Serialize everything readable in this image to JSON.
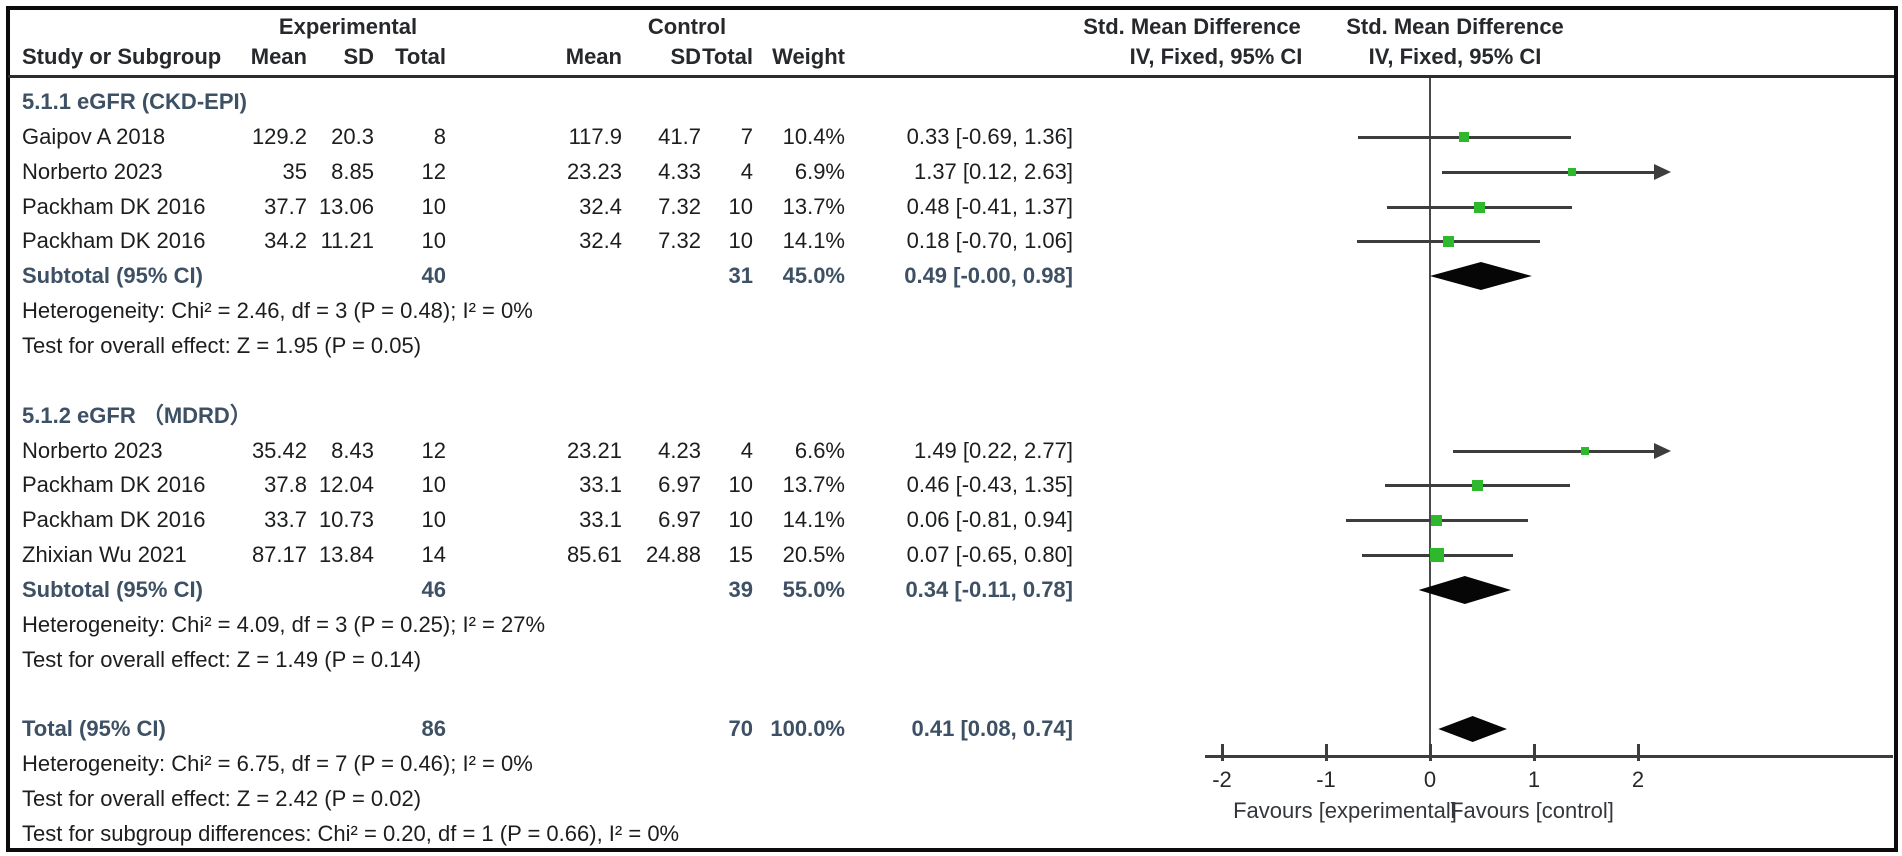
{
  "chart_data": {
    "type": "scatter",
    "subtype": "forest-plot-meta-analysis",
    "header": {
      "study": "Study or Subgroup",
      "experimental": "Experimental",
      "control": "Control",
      "mean": "Mean",
      "sd": "SD",
      "total": "Total",
      "weight": "Weight",
      "smd_title": "Std. Mean Difference",
      "method": "IV, Fixed, 95% CI"
    },
    "subgroups": [
      {
        "title": "5.1.1 eGFR (CKD-EPI)",
        "studies": [
          {
            "name": "Gaipov A 2018",
            "exp_mean": "129.2",
            "exp_sd": "20.3",
            "exp_total": "8",
            "ctl_mean": "117.9",
            "ctl_sd": "41.7",
            "ctl_total": "7",
            "weight": "10.4%",
            "weight_val": 10.4,
            "ci_text": "0.33 [-0.69, 1.36]",
            "est": 0.33,
            "lo": -0.69,
            "hi": 1.36
          },
          {
            "name": "Norberto 2023",
            "exp_mean": "35",
            "exp_sd": "8.85",
            "exp_total": "12",
            "ctl_mean": "23.23",
            "ctl_sd": "4.33",
            "ctl_total": "4",
            "weight": "6.9%",
            "weight_val": 6.9,
            "ci_text": "1.37 [0.12, 2.63]",
            "est": 1.37,
            "lo": 0.12,
            "hi": 2.63
          },
          {
            "name": "Packham DK 2016",
            "exp_mean": "37.7",
            "exp_sd": "13.06",
            "exp_total": "10",
            "ctl_mean": "32.4",
            "ctl_sd": "7.32",
            "ctl_total": "10",
            "weight": "13.7%",
            "weight_val": 13.7,
            "ci_text": "0.48 [-0.41, 1.37]",
            "est": 0.48,
            "lo": -0.41,
            "hi": 1.37
          },
          {
            "name": "Packham DK 2016",
            "exp_mean": "34.2",
            "exp_sd": "11.21",
            "exp_total": "10",
            "ctl_mean": "32.4",
            "ctl_sd": "7.32",
            "ctl_total": "10",
            "weight": "14.1%",
            "weight_val": 14.1,
            "ci_text": "0.18 [-0.70, 1.06]",
            "est": 0.18,
            "lo": -0.7,
            "hi": 1.06
          }
        ],
        "subtotal": {
          "label": "Subtotal (95% CI)",
          "exp_total": "40",
          "ctl_total": "31",
          "weight": "45.0%",
          "ci_text": "0.49 [-0.00, 0.98]",
          "est": 0.49,
          "lo": -0.001,
          "hi": 0.98
        },
        "heterogeneity": "Heterogeneity: Chi² = 2.46, df = 3 (P = 0.48); I² = 0%",
        "overall_effect": "Test for overall effect: Z = 1.95 (P = 0.05)"
      },
      {
        "title": "5.1.2 eGFR （MDRD）",
        "studies": [
          {
            "name": "Norberto 2023",
            "exp_mean": "35.42",
            "exp_sd": "8.43",
            "exp_total": "12",
            "ctl_mean": "23.21",
            "ctl_sd": "4.23",
            "ctl_total": "4",
            "weight": "6.6%",
            "weight_val": 6.6,
            "ci_text": "1.49 [0.22, 2.77]",
            "est": 1.49,
            "lo": 0.22,
            "hi": 2.77
          },
          {
            "name": "Packham DK 2016",
            "exp_mean": "37.8",
            "exp_sd": "12.04",
            "exp_total": "10",
            "ctl_mean": "33.1",
            "ctl_sd": "6.97",
            "ctl_total": "10",
            "weight": "13.7%",
            "weight_val": 13.7,
            "ci_text": "0.46 [-0.43, 1.35]",
            "est": 0.46,
            "lo": -0.43,
            "hi": 1.35
          },
          {
            "name": "Packham DK 2016",
            "exp_mean": "33.7",
            "exp_sd": "10.73",
            "exp_total": "10",
            "ctl_mean": "33.1",
            "ctl_sd": "6.97",
            "ctl_total": "10",
            "weight": "14.1%",
            "weight_val": 14.1,
            "ci_text": "0.06 [-0.81, 0.94]",
            "est": 0.06,
            "lo": -0.81,
            "hi": 0.94
          },
          {
            "name": "Zhixian Wu 2021",
            "exp_mean": "87.17",
            "exp_sd": "13.84",
            "exp_total": "14",
            "ctl_mean": "85.61",
            "ctl_sd": "24.88",
            "ctl_total": "15",
            "weight": "20.5%",
            "weight_val": 20.5,
            "ci_text": "0.07 [-0.65, 0.80]",
            "est": 0.07,
            "lo": -0.65,
            "hi": 0.8
          }
        ],
        "subtotal": {
          "label": "Subtotal (95% CI)",
          "exp_total": "46",
          "ctl_total": "39",
          "weight": "55.0%",
          "ci_text": "0.34 [-0.11, 0.78]",
          "est": 0.34,
          "lo": -0.11,
          "hi": 0.78
        },
        "heterogeneity": "Heterogeneity: Chi² = 4.09, df = 3 (P = 0.25); I² = 27%",
        "overall_effect": "Test for overall effect: Z = 1.49 (P = 0.14)"
      }
    ],
    "total": {
      "label": "Total (95% CI)",
      "exp_total": "86",
      "ctl_total": "70",
      "weight": "100.0%",
      "ci_text": "0.41 [0.08, 0.74]",
      "est": 0.41,
      "lo": 0.08,
      "hi": 0.74,
      "footnotes": [
        "Heterogeneity: Chi² = 6.75, df = 7 (P = 0.46); I² = 0%",
        "Test for overall effect: Z = 2.42 (P = 0.02)",
        "Test for subgroup differences: Chi² = 0.20, df = 1 (P = 0.66), I² = 0%"
      ]
    },
    "axis": {
      "min": -2,
      "max": 2,
      "tick_values": [
        -2,
        -1,
        0,
        1,
        2
      ],
      "tick_labels": [
        "-2",
        "-1",
        "0",
        "1",
        "2"
      ],
      "favours_left": "Favours [experimental]",
      "favours_right": "Favours [control]"
    },
    "colors": {
      "marker_green": "#2db82d",
      "diamond_black": "#060606",
      "summary_text": "#3d5064",
      "body_text": "#1b1d1f",
      "line": "#3d3d3d"
    }
  }
}
